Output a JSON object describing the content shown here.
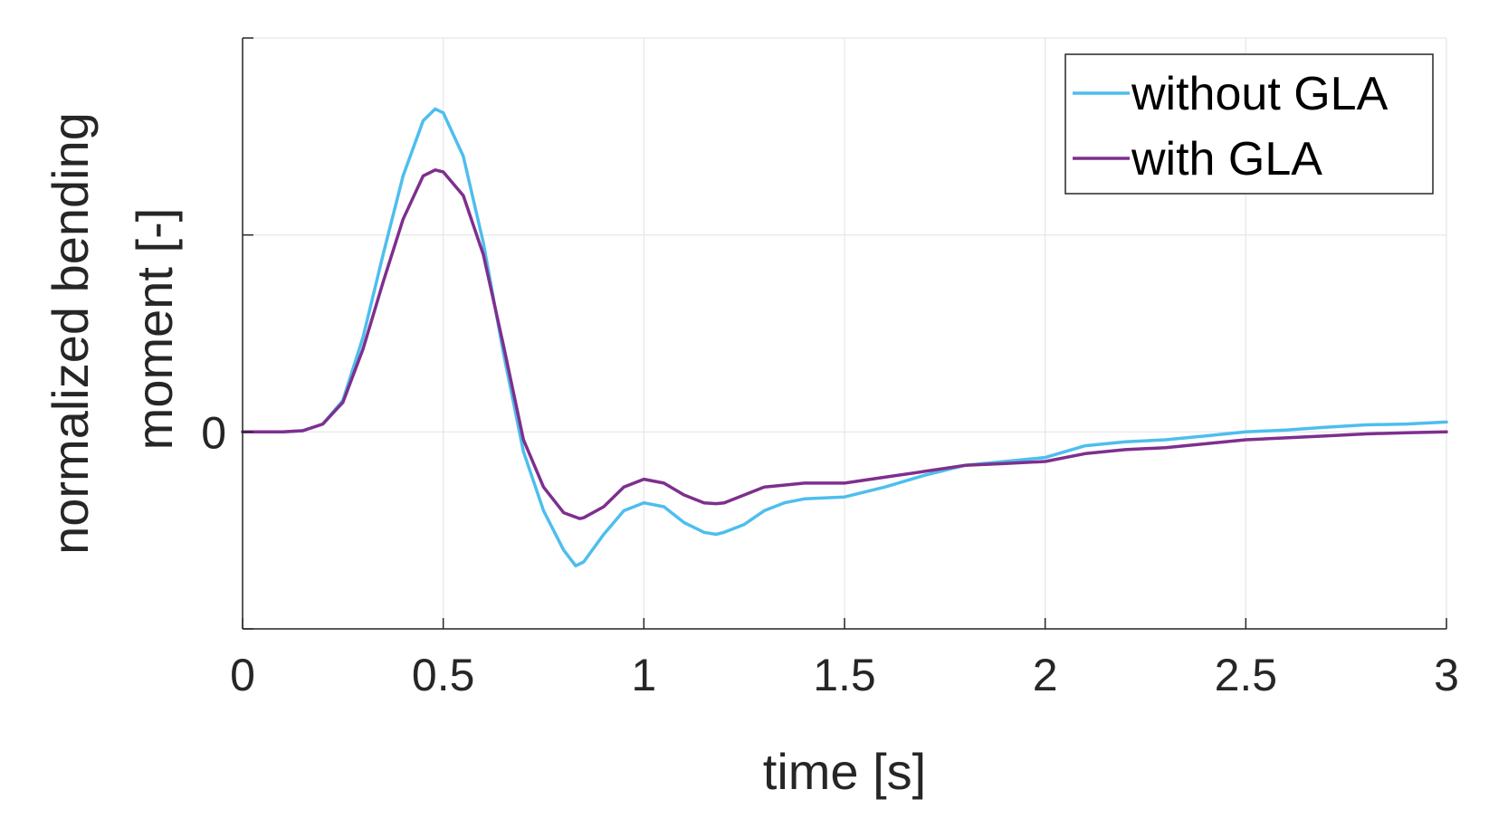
{
  "chart_data": {
    "type": "line",
    "xlabel": "time [s]",
    "ylabel_lines": [
      "normalized bending",
      "moment [-]"
    ],
    "xlim": [
      0,
      3
    ],
    "ylim": [
      -0.5,
      1.0
    ],
    "grid": true,
    "legend_position": "top-right",
    "x_ticks": [
      {
        "value": 0,
        "label": "0"
      },
      {
        "value": 0.5,
        "label": "0.5"
      },
      {
        "value": 1,
        "label": "1"
      },
      {
        "value": 1.5,
        "label": "1.5"
      },
      {
        "value": 2,
        "label": "2"
      },
      {
        "value": 2.5,
        "label": "2.5"
      },
      {
        "value": 3,
        "label": "3"
      }
    ],
    "y_ticks": [
      {
        "value": -0.5,
        "label": ""
      },
      {
        "value": 0,
        "label": "0"
      },
      {
        "value": 0.5,
        "label": ""
      },
      {
        "value": 1.0,
        "label": ""
      }
    ],
    "series": [
      {
        "name": "without GLA",
        "color": "#4DBEEE",
        "x": [
          0,
          0.1,
          0.15,
          0.2,
          0.25,
          0.3,
          0.35,
          0.4,
          0.45,
          0.48,
          0.5,
          0.55,
          0.6,
          0.65,
          0.7,
          0.75,
          0.8,
          0.83,
          0.85,
          0.9,
          0.95,
          1.0,
          1.05,
          1.1,
          1.15,
          1.18,
          1.2,
          1.25,
          1.3,
          1.35,
          1.4,
          1.5,
          1.6,
          1.7,
          1.8,
          1.9,
          2.0,
          2.1,
          2.2,
          2.3,
          2.4,
          2.5,
          2.6,
          2.7,
          2.8,
          2.9,
          3.0
        ],
        "y": [
          0,
          0,
          0.003,
          0.02,
          0.08,
          0.24,
          0.45,
          0.65,
          0.79,
          0.82,
          0.81,
          0.7,
          0.48,
          0.2,
          -0.05,
          -0.2,
          -0.3,
          -0.34,
          -0.33,
          -0.26,
          -0.2,
          -0.18,
          -0.19,
          -0.23,
          -0.255,
          -0.26,
          -0.255,
          -0.235,
          -0.2,
          -0.18,
          -0.17,
          -0.165,
          -0.14,
          -0.11,
          -0.085,
          -0.075,
          -0.065,
          -0.035,
          -0.025,
          -0.02,
          -0.01,
          0.0,
          0.005,
          0.012,
          0.018,
          0.02,
          0.025
        ]
      },
      {
        "name": "with GLA",
        "color": "#7E2F8E",
        "x": [
          0,
          0.1,
          0.15,
          0.2,
          0.25,
          0.3,
          0.35,
          0.4,
          0.45,
          0.48,
          0.5,
          0.55,
          0.6,
          0.65,
          0.7,
          0.75,
          0.8,
          0.84,
          0.85,
          0.9,
          0.95,
          1.0,
          1.05,
          1.1,
          1.15,
          1.18,
          1.2,
          1.25,
          1.3,
          1.35,
          1.4,
          1.5,
          1.6,
          1.7,
          1.8,
          1.9,
          2.0,
          2.1,
          2.2,
          2.3,
          2.4,
          2.5,
          2.6,
          2.7,
          2.8,
          2.9,
          3.0
        ],
        "y": [
          0,
          0,
          0.003,
          0.02,
          0.075,
          0.21,
          0.38,
          0.54,
          0.65,
          0.665,
          0.66,
          0.6,
          0.45,
          0.22,
          -0.02,
          -0.14,
          -0.205,
          -0.22,
          -0.218,
          -0.19,
          -0.14,
          -0.12,
          -0.13,
          -0.16,
          -0.18,
          -0.182,
          -0.18,
          -0.16,
          -0.14,
          -0.135,
          -0.13,
          -0.13,
          -0.115,
          -0.1,
          -0.085,
          -0.08,
          -0.075,
          -0.055,
          -0.045,
          -0.04,
          -0.03,
          -0.02,
          -0.015,
          -0.01,
          -0.005,
          -0.002,
          0.0
        ]
      }
    ]
  }
}
